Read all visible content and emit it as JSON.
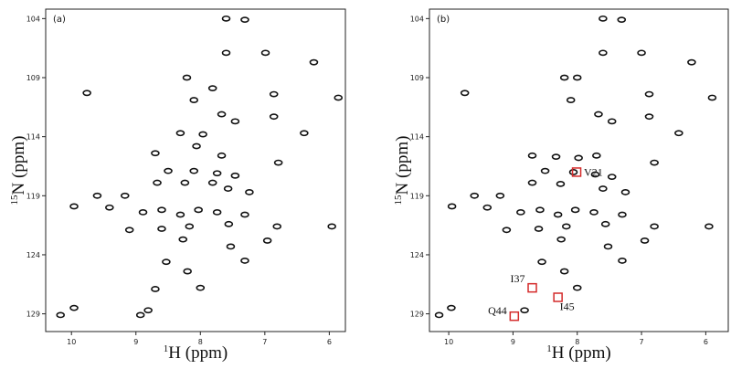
{
  "chart_data": [
    {
      "type": "scatter",
      "panel_label": "(a)",
      "xlabel_sup": "1",
      "xlabel": "H (ppm)",
      "ylabel_sup": "15",
      "ylabel": "N (ppm)",
      "xlim": [
        10.4,
        5.75
      ],
      "ylim": [
        130.5,
        103.2
      ],
      "xticks": [
        10,
        9,
        8,
        7,
        6
      ],
      "yticks": [
        104,
        109,
        114,
        119,
        124,
        129
      ],
      "color": "#111111",
      "x": [
        7.6,
        7.31,
        7.6,
        6.99,
        6.24,
        8.21,
        9.76,
        7.81,
        6.86,
        8.1,
        5.86,
        7.67,
        6.86,
        7.46,
        6.39,
        8.31,
        7.96,
        8.7,
        8.06,
        7.67,
        6.79,
        8.5,
        8.1,
        7.74,
        7.46,
        9.6,
        9.17,
        8.67,
        8.24,
        7.81,
        7.57,
        7.24,
        8.89,
        8.6,
        8.31,
        8.03,
        7.74,
        7.31,
        8.6,
        8.17,
        7.56,
        6.81,
        9.96,
        9.41,
        9.1,
        8.27,
        7.53,
        6.96,
        5.96,
        8.53,
        8.2,
        8.7,
        8.0,
        9.96,
        10.17,
        8.93,
        8.81,
        7.31
      ],
      "y": [
        104.0,
        104.1,
        106.9,
        106.9,
        107.7,
        109.0,
        110.3,
        109.9,
        110.4,
        110.9,
        110.7,
        112.1,
        112.3,
        112.7,
        113.7,
        113.7,
        113.8,
        115.4,
        114.8,
        115.6,
        116.2,
        116.9,
        116.9,
        117.1,
        117.3,
        119.0,
        119.0,
        117.9,
        117.9,
        117.9,
        118.4,
        118.7,
        120.4,
        120.2,
        120.6,
        120.2,
        120.4,
        120.6,
        121.8,
        121.6,
        121.4,
        121.6,
        119.9,
        120.0,
        121.9,
        122.7,
        123.3,
        122.8,
        121.6,
        124.6,
        125.4,
        126.9,
        126.8,
        128.5,
        129.1,
        129.1,
        128.7,
        124.5
      ]
    },
    {
      "type": "scatter",
      "panel_label": "(b)",
      "xlabel_sup": "1",
      "xlabel": "H (ppm)",
      "ylabel_sup": "15",
      "ylabel": "N (ppm)",
      "xlim": [
        10.3,
        5.65
      ],
      "ylim": [
        130.5,
        103.2
      ],
      "xticks": [
        10,
        9,
        8,
        7,
        6
      ],
      "yticks": [
        104,
        109,
        114,
        119,
        124,
        129
      ],
      "color": "#111111",
      "x": [
        7.6,
        7.31,
        7.6,
        7.0,
        6.22,
        8.2,
        9.75,
        8.0,
        6.88,
        8.1,
        5.9,
        7.67,
        6.88,
        7.46,
        6.42,
        8.33,
        7.98,
        8.7,
        8.06,
        7.7,
        6.8,
        8.5,
        7.72,
        7.46,
        9.6,
        9.2,
        8.7,
        8.26,
        7.6,
        7.25,
        8.88,
        8.58,
        8.3,
        8.03,
        7.74,
        7.3,
        8.6,
        8.17,
        7.56,
        6.8,
        9.95,
        9.4,
        9.1,
        8.25,
        7.52,
        6.95,
        5.95,
        8.55,
        8.2,
        8.0,
        9.96,
        10.15,
        8.82,
        7.3
      ],
      "y": [
        104.0,
        104.1,
        106.9,
        106.9,
        107.7,
        109.0,
        110.3,
        109.0,
        110.4,
        110.9,
        110.7,
        112.1,
        112.3,
        112.7,
        113.7,
        115.7,
        115.8,
        115.6,
        117.0,
        115.6,
        116.2,
        116.9,
        117.2,
        117.4,
        119.0,
        119.0,
        117.9,
        118.0,
        118.4,
        118.7,
        120.4,
        120.2,
        120.6,
        120.2,
        120.4,
        120.6,
        121.8,
        121.6,
        121.4,
        121.6,
        119.9,
        120.0,
        121.9,
        122.7,
        123.3,
        122.8,
        121.6,
        124.6,
        125.4,
        126.8,
        128.5,
        129.1,
        128.7,
        124.5
      ],
      "annotations": [
        {
          "text": "V21",
          "x": 8.01,
          "y": 117.0
        },
        {
          "text": "I37",
          "x": 8.7,
          "y": 126.8
        },
        {
          "text": "I45",
          "x": 8.3,
          "y": 127.6
        },
        {
          "text": "Q44",
          "x": 8.98,
          "y": 129.2
        }
      ],
      "annotation_color": "#d42a2a"
    }
  ]
}
